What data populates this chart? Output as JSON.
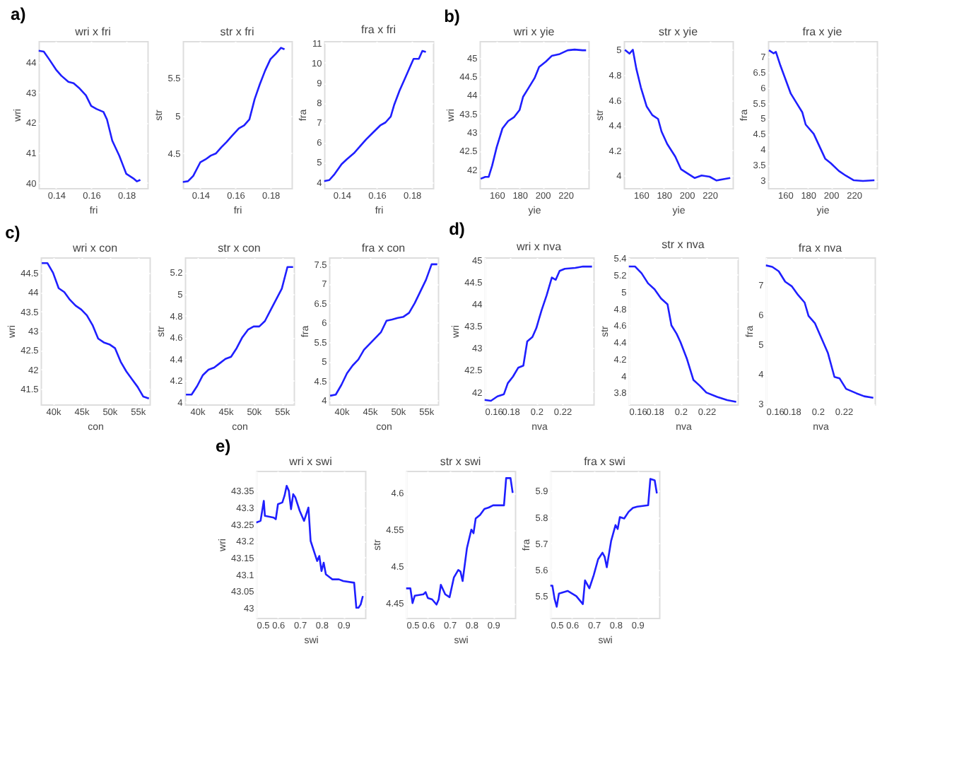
{
  "chart_data": [
    {
      "type": "line",
      "title": "wri x fri",
      "xlabel": "fri",
      "ylabel": "wri",
      "annotations": [
        "a)"
      ],
      "color": "#1f1fff",
      "grid": true,
      "xlim": [
        0.13,
        0.192
      ],
      "xticks": [
        0.14,
        0.16,
        0.18
      ],
      "ylim": [
        39.83,
        44.7
      ],
      "yticks": [
        40,
        41,
        42,
        43,
        44
      ],
      "x": [
        0.13,
        0.133,
        0.136,
        0.14,
        0.143,
        0.147,
        0.15,
        0.153,
        0.157,
        0.16,
        0.163,
        0.167,
        0.169,
        0.172,
        0.176,
        0.178,
        0.18,
        0.184,
        0.186,
        0.188
      ],
      "values": [
        44.38,
        44.35,
        44.1,
        43.75,
        43.55,
        43.35,
        43.3,
        43.15,
        42.9,
        42.55,
        42.45,
        42.35,
        42.1,
        41.4,
        40.9,
        40.6,
        40.3,
        40.15,
        40.05,
        40.1
      ]
    },
    {
      "type": "line",
      "title": "str x fri",
      "xlabel": "fri",
      "ylabel": "str",
      "color": "#1f1fff",
      "grid": true,
      "xlim": [
        0.13,
        0.192
      ],
      "xticks": [
        0.14,
        0.16,
        0.18
      ],
      "ylim": [
        4.04,
        5.99
      ],
      "yticks": [
        4.5,
        5,
        5.5
      ],
      "x": [
        0.13,
        0.133,
        0.136,
        0.14,
        0.143,
        0.146,
        0.149,
        0.152,
        0.155,
        0.158,
        0.162,
        0.165,
        0.168,
        0.171,
        0.174,
        0.177,
        0.18,
        0.183,
        0.186,
        0.188
      ],
      "values": [
        4.12,
        4.13,
        4.2,
        4.38,
        4.42,
        4.47,
        4.5,
        4.58,
        4.65,
        4.73,
        4.83,
        4.87,
        4.95,
        5.22,
        5.42,
        5.6,
        5.75,
        5.82,
        5.9,
        5.88
      ]
    },
    {
      "type": "line",
      "title": "fra x fri",
      "xlabel": "fri",
      "ylabel": "fra",
      "color": "#1f1fff",
      "grid": true,
      "xlim": [
        0.13,
        0.192
      ],
      "xticks": [
        0.14,
        0.16,
        0.18
      ],
      "ylim": [
        3.7,
        11.1
      ],
      "yticks": [
        4,
        5,
        6,
        7,
        8,
        9,
        10,
        11
      ],
      "x": [
        0.13,
        0.133,
        0.136,
        0.14,
        0.143,
        0.147,
        0.15,
        0.154,
        0.158,
        0.162,
        0.165,
        0.168,
        0.17,
        0.173,
        0.176,
        0.179,
        0.181,
        0.184,
        0.186,
        0.188
      ],
      "values": [
        4.05,
        4.1,
        4.4,
        4.9,
        5.15,
        5.45,
        5.75,
        6.15,
        6.5,
        6.85,
        7.0,
        7.3,
        7.9,
        8.6,
        9.2,
        9.8,
        10.2,
        10.2,
        10.6,
        10.55
      ]
    },
    {
      "type": "line",
      "title": "wri x yie",
      "xlabel": "yie",
      "ylabel": "wri",
      "annotations": [
        "b)"
      ],
      "color": "#1f1fff",
      "grid": true,
      "xlim": [
        145,
        240
      ],
      "xticks": [
        160,
        180,
        200,
        220
      ],
      "ylim": [
        41.5,
        45.45
      ],
      "yticks": [
        42,
        42.5,
        43,
        43.5,
        44,
        44.5,
        45
      ],
      "x": [
        146,
        150,
        153,
        156,
        160,
        165,
        170,
        175,
        180,
        183,
        188,
        193,
        197,
        203,
        208,
        215,
        222,
        228,
        235,
        238
      ],
      "values": [
        41.75,
        41.8,
        41.8,
        42.1,
        42.6,
        43.1,
        43.3,
        43.4,
        43.6,
        43.95,
        44.2,
        44.45,
        44.75,
        44.9,
        45.05,
        45.1,
        45.2,
        45.22,
        45.2,
        45.2
      ]
    },
    {
      "type": "line",
      "title": "str x yie",
      "xlabel": "yie",
      "ylabel": "str",
      "color": "#1f1fff",
      "grid": true,
      "xlim": [
        145,
        240
      ],
      "xticks": [
        160,
        180,
        200,
        220
      ],
      "ylim": [
        3.9,
        5.07
      ],
      "yticks": [
        4,
        4.2,
        4.4,
        4.6,
        4.8,
        5
      ],
      "x": [
        146,
        150,
        153,
        156,
        160,
        165,
        170,
        175,
        178,
        183,
        190,
        195,
        200,
        207,
        213,
        220,
        226,
        232,
        238
      ],
      "values": [
        5.0,
        4.97,
        5.0,
        4.85,
        4.7,
        4.55,
        4.48,
        4.45,
        4.35,
        4.25,
        4.15,
        4.05,
        4.02,
        3.98,
        4.0,
        3.99,
        3.96,
        3.97,
        3.98
      ]
    },
    {
      "type": "line",
      "title": "fra x yie",
      "xlabel": "yie",
      "ylabel": "fra",
      "color": "#1f1fff",
      "grid": true,
      "xlim": [
        145,
        240
      ],
      "xticks": [
        160,
        180,
        200,
        220
      ],
      "ylim": [
        2.75,
        7.5
      ],
      "yticks": [
        3,
        3.5,
        4,
        4.5,
        5,
        5.5,
        6,
        6.5,
        7
      ],
      "x": [
        146,
        150,
        152,
        156,
        160,
        165,
        170,
        175,
        178,
        185,
        190,
        195,
        200,
        207,
        213,
        220,
        228,
        238
      ],
      "values": [
        7.2,
        7.1,
        7.15,
        6.7,
        6.3,
        5.8,
        5.5,
        5.2,
        4.8,
        4.5,
        4.1,
        3.7,
        3.55,
        3.3,
        3.15,
        3.0,
        2.98,
        3.0
      ]
    },
    {
      "type": "line",
      "title": "wri x con",
      "xlabel": "con",
      "ylabel": "wri",
      "annotations": [
        "c)"
      ],
      "color": "#1f1fff",
      "grid": true,
      "xlim": [
        37800,
        57100
      ],
      "xticks": [
        {
          "value": 40000,
          "label": "40k"
        },
        {
          "value": 45000,
          "label": "45k"
        },
        {
          "value": 50000,
          "label": "50k"
        },
        {
          "value": 55000,
          "label": "55k"
        }
      ],
      "ylim": [
        41.1,
        44.9
      ],
      "yticks": [
        41.5,
        42,
        42.5,
        43,
        43.5,
        44,
        44.5
      ],
      "x": [
        38000,
        39000,
        40000,
        41000,
        42000,
        43000,
        44000,
        45000,
        46000,
        47000,
        48000,
        49000,
        50000,
        51000,
        52000,
        53000,
        54000,
        55000,
        56000,
        57000
      ],
      "values": [
        44.75,
        44.75,
        44.5,
        44.1,
        44.0,
        43.8,
        43.65,
        43.55,
        43.4,
        43.15,
        42.8,
        42.7,
        42.65,
        42.55,
        42.2,
        41.95,
        41.75,
        41.55,
        41.3,
        41.25
      ]
    },
    {
      "type": "line",
      "title": "str x con",
      "xlabel": "con",
      "ylabel": "str",
      "color": "#1f1fff",
      "grid": true,
      "xlim": [
        37800,
        57100
      ],
      "xticks": [
        {
          "value": 40000,
          "label": "40k"
        },
        {
          "value": 45000,
          "label": "45k"
        },
        {
          "value": 50000,
          "label": "50k"
        },
        {
          "value": 55000,
          "label": "55k"
        }
      ],
      "ylim": [
        3.98,
        5.34
      ],
      "yticks": [
        4,
        4.2,
        4.4,
        4.6,
        4.8,
        5,
        5.2
      ],
      "x": [
        38000,
        39000,
        40000,
        41000,
        42000,
        43000,
        44000,
        45000,
        46000,
        47000,
        48000,
        49000,
        50000,
        51000,
        52000,
        53000,
        54000,
        55000,
        56000,
        57000
      ],
      "values": [
        4.07,
        4.07,
        4.15,
        4.25,
        4.3,
        4.32,
        4.36,
        4.4,
        4.42,
        4.5,
        4.6,
        4.67,
        4.7,
        4.7,
        4.75,
        4.85,
        4.95,
        5.05,
        5.25,
        5.25
      ]
    },
    {
      "type": "line",
      "title": "fra x con",
      "xlabel": "con",
      "ylabel": "fra",
      "color": "#1f1fff",
      "grid": true,
      "xlim": [
        37800,
        57100
      ],
      "xticks": [
        {
          "value": 40000,
          "label": "40k"
        },
        {
          "value": 45000,
          "label": "45k"
        },
        {
          "value": 50000,
          "label": "50k"
        },
        {
          "value": 55000,
          "label": "55k"
        }
      ],
      "ylim": [
        3.9,
        7.68
      ],
      "yticks": [
        4,
        4.5,
        5,
        5.5,
        6,
        6.5,
        7,
        7.5
      ],
      "x": [
        38000,
        39000,
        40000,
        41000,
        42000,
        43000,
        44000,
        45000,
        46000,
        47000,
        48000,
        49000,
        50000,
        51000,
        52000,
        53000,
        54000,
        55000,
        56000,
        57000
      ],
      "values": [
        4.12,
        4.15,
        4.4,
        4.7,
        4.9,
        5.05,
        5.3,
        5.45,
        5.6,
        5.75,
        6.05,
        6.08,
        6.12,
        6.15,
        6.25,
        6.5,
        6.8,
        7.1,
        7.5,
        7.5
      ]
    },
    {
      "type": "line",
      "title": "wri x nva",
      "xlabel": "nva",
      "ylabel": "wri",
      "annotations": [
        "d)"
      ],
      "color": "#1f1fff",
      "grid": true,
      "xlim": [
        0.16,
        0.244
      ],
      "xticks": [
        0.16,
        0.18,
        0.2,
        0.22
      ],
      "ylim": [
        41.72,
        45.06
      ],
      "yticks": [
        42,
        42.5,
        43,
        43.5,
        44,
        44.5,
        45
      ],
      "x": [
        0.16,
        0.165,
        0.17,
        0.175,
        0.178,
        0.182,
        0.186,
        0.19,
        0.193,
        0.197,
        0.2,
        0.204,
        0.208,
        0.212,
        0.215,
        0.218,
        0.222,
        0.23,
        0.236,
        0.243
      ],
      "values": [
        41.82,
        41.8,
        41.9,
        41.95,
        42.2,
        42.35,
        42.55,
        42.6,
        43.15,
        43.25,
        43.45,
        43.85,
        44.2,
        44.6,
        44.55,
        44.75,
        44.8,
        44.82,
        44.85,
        44.85
      ]
    },
    {
      "type": "line",
      "title": "str x nva",
      "xlabel": "nva",
      "ylabel": "str",
      "color": "#1f1fff",
      "grid": true,
      "xlim": [
        0.16,
        0.244
      ],
      "xticks": [
        0.16,
        0.18,
        0.2,
        0.22
      ],
      "ylim": [
        3.66,
        5.41
      ],
      "yticks": [
        3.8,
        4,
        4.2,
        4.4,
        4.6,
        4.8,
        5,
        5.2,
        5.4
      ],
      "x": [
        0.16,
        0.165,
        0.17,
        0.175,
        0.18,
        0.185,
        0.19,
        0.193,
        0.197,
        0.2,
        0.205,
        0.21,
        0.215,
        0.22,
        0.228,
        0.236,
        0.243
      ],
      "values": [
        5.3,
        5.3,
        5.22,
        5.1,
        5.03,
        4.92,
        4.85,
        4.6,
        4.5,
        4.4,
        4.2,
        3.95,
        3.88,
        3.8,
        3.75,
        3.71,
        3.69
      ]
    },
    {
      "type": "line",
      "title": "fra x nva",
      "xlabel": "nva",
      "ylabel": "fra",
      "color": "#1f1fff",
      "grid": true,
      "xlim": [
        0.16,
        0.244
      ],
      "xticks": [
        0.16,
        0.18,
        0.2,
        0.22
      ],
      "ylim": [
        2.98,
        7.92
      ],
      "yticks": [
        3,
        4,
        5,
        6,
        7
      ],
      "x": [
        0.16,
        0.165,
        0.17,
        0.175,
        0.18,
        0.185,
        0.19,
        0.193,
        0.198,
        0.203,
        0.208,
        0.213,
        0.217,
        0.222,
        0.23,
        0.236,
        0.243
      ],
      "values": [
        7.65,
        7.6,
        7.45,
        7.1,
        6.95,
        6.65,
        6.4,
        5.95,
        5.7,
        5.2,
        4.7,
        3.9,
        3.85,
        3.5,
        3.35,
        3.25,
        3.2
      ]
    },
    {
      "type": "line",
      "title": "wri x swi",
      "xlabel": "swi",
      "ylabel": "wri",
      "annotations": [
        "e)"
      ],
      "color": "#1f1fff",
      "grid": true,
      "xlim": [
        0.5,
        1.0
      ],
      "xticks": [
        0.5,
        0.6,
        0.7,
        0.8,
        0.9
      ],
      "ylim": [
        42.97,
        43.41
      ],
      "yticks": [
        43,
        43.05,
        43.1,
        43.15,
        43.2,
        43.25,
        43.3,
        43.35
      ],
      "x": [
        0.5,
        0.52,
        0.53,
        0.535,
        0.54,
        0.58,
        0.59,
        0.6,
        0.62,
        0.63,
        0.64,
        0.65,
        0.66,
        0.67,
        0.68,
        0.7,
        0.72,
        0.74,
        0.75,
        0.77,
        0.78,
        0.79,
        0.8,
        0.81,
        0.82,
        0.84,
        0.85,
        0.88,
        0.9,
        0.95,
        0.96,
        0.97,
        0.98,
        0.99
      ],
      "values": [
        43.255,
        43.26,
        43.3,
        43.32,
        43.275,
        43.27,
        43.265,
        43.31,
        43.315,
        43.335,
        43.365,
        43.35,
        43.295,
        43.34,
        43.33,
        43.29,
        43.26,
        43.3,
        43.2,
        43.16,
        43.14,
        43.155,
        43.11,
        43.135,
        43.1,
        43.09,
        43.085,
        43.085,
        43.08,
        43.075,
        43.0,
        43.0,
        43.01,
        43.035
      ]
    },
    {
      "type": "line",
      "title": "str x swi",
      "xlabel": "swi",
      "ylabel": "str",
      "color": "#1f1fff",
      "grid": true,
      "xlim": [
        0.5,
        1.0
      ],
      "xticks": [
        0.5,
        0.6,
        0.7,
        0.8,
        0.9
      ],
      "ylim": [
        4.43,
        4.63
      ],
      "yticks": [
        4.45,
        4.5,
        4.55,
        4.6
      ],
      "x": [
        0.5,
        0.52,
        0.53,
        0.54,
        0.58,
        0.59,
        0.6,
        0.62,
        0.64,
        0.65,
        0.66,
        0.68,
        0.7,
        0.72,
        0.74,
        0.75,
        0.76,
        0.78,
        0.8,
        0.81,
        0.82,
        0.84,
        0.86,
        0.88,
        0.9,
        0.95,
        0.96,
        0.98,
        0.99
      ],
      "values": [
        4.47,
        4.47,
        4.45,
        4.46,
        4.462,
        4.465,
        4.457,
        4.455,
        4.448,
        4.455,
        4.475,
        4.462,
        4.458,
        4.485,
        4.495,
        4.493,
        4.48,
        4.525,
        4.55,
        4.545,
        4.565,
        4.57,
        4.578,
        4.58,
        4.583,
        4.583,
        4.62,
        4.62,
        4.6
      ]
    },
    {
      "type": "line",
      "title": "fra x swi",
      "xlabel": "swi",
      "ylabel": "fra",
      "color": "#1f1fff",
      "grid": true,
      "xlim": [
        0.5,
        1.0
      ],
      "xticks": [
        0.5,
        0.6,
        0.7,
        0.8,
        0.9
      ],
      "ylim": [
        5.418,
        5.976
      ],
      "yticks": [
        5.5,
        5.6,
        5.7,
        5.8,
        5.9
      ],
      "x": [
        0.5,
        0.51,
        0.52,
        0.53,
        0.54,
        0.58,
        0.6,
        0.62,
        0.64,
        0.65,
        0.66,
        0.68,
        0.7,
        0.72,
        0.74,
        0.75,
        0.76,
        0.78,
        0.8,
        0.81,
        0.82,
        0.84,
        0.86,
        0.88,
        0.9,
        0.95,
        0.96,
        0.98,
        0.99
      ],
      "values": [
        5.54,
        5.54,
        5.49,
        5.46,
        5.51,
        5.52,
        5.51,
        5.5,
        5.48,
        5.47,
        5.56,
        5.53,
        5.58,
        5.64,
        5.665,
        5.65,
        5.61,
        5.71,
        5.77,
        5.755,
        5.8,
        5.795,
        5.82,
        5.835,
        5.84,
        5.845,
        5.945,
        5.94,
        5.89
      ]
    }
  ]
}
